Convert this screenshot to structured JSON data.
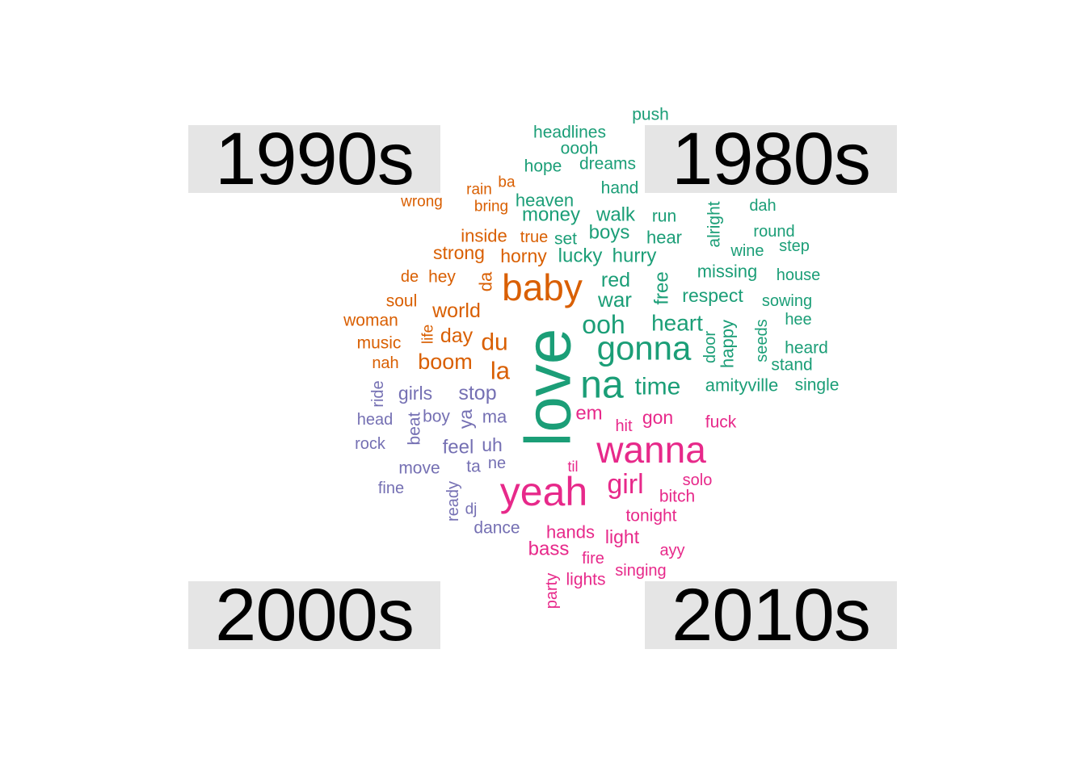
{
  "panels": {
    "p1990": "1990s",
    "p1980": "1980s",
    "p2000": "2000s",
    "p2010": "2010s"
  },
  "colors": {
    "1980s": "#1b9e77",
    "1990s": "#d95f02",
    "2000s": "#7570b3",
    "2010s": "#e7298a"
  },
  "words": [
    {
      "t": "push",
      "g": "1980s",
      "s": 21
    },
    {
      "t": "headlines",
      "g": "1980s",
      "s": 21
    },
    {
      "t": "oooh",
      "g": "1980s",
      "s": 21
    },
    {
      "t": "hope",
      "g": "1980s",
      "s": 21
    },
    {
      "t": "dreams",
      "g": "1980s",
      "s": 21
    },
    {
      "t": "hand",
      "g": "1980s",
      "s": 21
    },
    {
      "t": "heaven",
      "g": "1980s",
      "s": 22
    },
    {
      "t": "money",
      "g": "1980s",
      "s": 24
    },
    {
      "t": "walk",
      "g": "1980s",
      "s": 24
    },
    {
      "t": "run",
      "g": "1980s",
      "s": 21
    },
    {
      "t": "alright",
      "g": "1980s",
      "s": 21,
      "rot": true
    },
    {
      "t": "dah",
      "g": "1980s",
      "s": 20
    },
    {
      "t": "round",
      "g": "1980s",
      "s": 20
    },
    {
      "t": "step",
      "g": "1980s",
      "s": 20
    },
    {
      "t": "set",
      "g": "1980s",
      "s": 21
    },
    {
      "t": "boys",
      "g": "1980s",
      "s": 24
    },
    {
      "t": "hear",
      "g": "1980s",
      "s": 22
    },
    {
      "t": "wine",
      "g": "1980s",
      "s": 20
    },
    {
      "t": "lucky",
      "g": "1980s",
      "s": 24
    },
    {
      "t": "hurry",
      "g": "1980s",
      "s": 24
    },
    {
      "t": "missing",
      "g": "1980s",
      "s": 22
    },
    {
      "t": "house",
      "g": "1980s",
      "s": 20
    },
    {
      "t": "red",
      "g": "1980s",
      "s": 25
    },
    {
      "t": "free",
      "g": "1980s",
      "s": 24,
      "rot": true
    },
    {
      "t": "war",
      "g": "1980s",
      "s": 26
    },
    {
      "t": "respect",
      "g": "1980s",
      "s": 23
    },
    {
      "t": "sowing",
      "g": "1980s",
      "s": 20
    },
    {
      "t": "ooh",
      "g": "1980s",
      "s": 32
    },
    {
      "t": "heart",
      "g": "1980s",
      "s": 28
    },
    {
      "t": "hee",
      "g": "1980s",
      "s": 20
    },
    {
      "t": "door",
      "g": "1980s",
      "s": 20,
      "rot": true
    },
    {
      "t": "happy",
      "g": "1980s",
      "s": 22,
      "rot": true
    },
    {
      "t": "seeds",
      "g": "1980s",
      "s": 20,
      "rot": true
    },
    {
      "t": "heard",
      "g": "1980s",
      "s": 21
    },
    {
      "t": "gonna",
      "g": "1980s",
      "s": 42
    },
    {
      "t": "stand",
      "g": "1980s",
      "s": 21
    },
    {
      "t": "love",
      "g": "1980s",
      "s": 80,
      "rot": true
    },
    {
      "t": "na",
      "g": "1980s",
      "s": 48
    },
    {
      "t": "time",
      "g": "1980s",
      "s": 30
    },
    {
      "t": "amityville",
      "g": "1980s",
      "s": 22
    },
    {
      "t": "single",
      "g": "1980s",
      "s": 21
    },
    {
      "t": "wrong",
      "g": "1990s",
      "s": 19
    },
    {
      "t": "rain",
      "g": "1990s",
      "s": 19
    },
    {
      "t": "ba",
      "g": "1990s",
      "s": 19
    },
    {
      "t": "bring",
      "g": "1990s",
      "s": 19
    },
    {
      "t": "inside",
      "g": "1990s",
      "s": 22
    },
    {
      "t": "true",
      "g": "1990s",
      "s": 20
    },
    {
      "t": "strong",
      "g": "1990s",
      "s": 23
    },
    {
      "t": "horny",
      "g": "1990s",
      "s": 23
    },
    {
      "t": "de",
      "g": "1990s",
      "s": 20
    },
    {
      "t": "hey",
      "g": "1990s",
      "s": 21
    },
    {
      "t": "da",
      "g": "1990s",
      "s": 22,
      "rot": true
    },
    {
      "t": "baby",
      "g": "1990s",
      "s": 46
    },
    {
      "t": "soul",
      "g": "1990s",
      "s": 21
    },
    {
      "t": "world",
      "g": "1990s",
      "s": 25
    },
    {
      "t": "woman",
      "g": "1990s",
      "s": 21
    },
    {
      "t": "life",
      "g": "1990s",
      "s": 19,
      "rot": true
    },
    {
      "t": "day",
      "g": "1990s",
      "s": 25
    },
    {
      "t": "music",
      "g": "1990s",
      "s": 21
    },
    {
      "t": "du",
      "g": "1990s",
      "s": 30
    },
    {
      "t": "nah",
      "g": "1990s",
      "s": 20
    },
    {
      "t": "boom",
      "g": "1990s",
      "s": 27
    },
    {
      "t": "la",
      "g": "1990s",
      "s": 31
    },
    {
      "t": "ride",
      "g": "2000s",
      "s": 20,
      "rot": true
    },
    {
      "t": "girls",
      "g": "2000s",
      "s": 23
    },
    {
      "t": "stop",
      "g": "2000s",
      "s": 25
    },
    {
      "t": "head",
      "g": "2000s",
      "s": 20
    },
    {
      "t": "beat",
      "g": "2000s",
      "s": 21,
      "rot": true
    },
    {
      "t": "boy",
      "g": "2000s",
      "s": 21
    },
    {
      "t": "ya",
      "g": "2000s",
      "s": 23,
      "rot": true
    },
    {
      "t": "ma",
      "g": "2000s",
      "s": 22
    },
    {
      "t": "rock",
      "g": "2000s",
      "s": 20
    },
    {
      "t": "feel",
      "g": "2000s",
      "s": 24
    },
    {
      "t": "uh",
      "g": "2000s",
      "s": 23
    },
    {
      "t": "move",
      "g": "2000s",
      "s": 21
    },
    {
      "t": "ta",
      "g": "2000s",
      "s": 21
    },
    {
      "t": "ne",
      "g": "2000s",
      "s": 20
    },
    {
      "t": "fine",
      "g": "2000s",
      "s": 20
    },
    {
      "t": "ready",
      "g": "2000s",
      "s": 20,
      "rot": true
    },
    {
      "t": "dj",
      "g": "2000s",
      "s": 19
    },
    {
      "t": "dance",
      "g": "2000s",
      "s": 21
    },
    {
      "t": "em",
      "g": "2010s",
      "s": 24
    },
    {
      "t": "hit",
      "g": "2010s",
      "s": 20
    },
    {
      "t": "gon",
      "g": "2010s",
      "s": 23
    },
    {
      "t": "fuck",
      "g": "2010s",
      "s": 21
    },
    {
      "t": "wanna",
      "g": "2010s",
      "s": 46
    },
    {
      "t": "til",
      "g": "2010s",
      "s": 18
    },
    {
      "t": "yeah",
      "g": "2010s",
      "s": 50
    },
    {
      "t": "girl",
      "g": "2010s",
      "s": 34
    },
    {
      "t": "solo",
      "g": "2010s",
      "s": 20
    },
    {
      "t": "bitch",
      "g": "2010s",
      "s": 21
    },
    {
      "t": "tonight",
      "g": "2010s",
      "s": 21
    },
    {
      "t": "hands",
      "g": "2010s",
      "s": 22
    },
    {
      "t": "light",
      "g": "2010s",
      "s": 23
    },
    {
      "t": "bass",
      "g": "2010s",
      "s": 24
    },
    {
      "t": "ayy",
      "g": "2010s",
      "s": 20
    },
    {
      "t": "fire",
      "g": "2010s",
      "s": 20
    },
    {
      "t": "singing",
      "g": "2010s",
      "s": 20
    },
    {
      "t": "party",
      "g": "2010s",
      "s": 20,
      "rot": true
    },
    {
      "t": "lights",
      "g": "2010s",
      "s": 21
    }
  ]
}
